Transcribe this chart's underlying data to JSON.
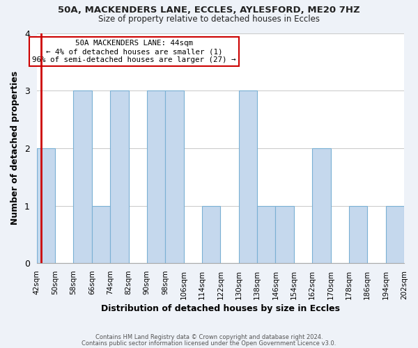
{
  "title": "50A, MACKENDERS LANE, ECCLES, AYLESFORD, ME20 7HZ",
  "subtitle": "Size of property relative to detached houses in Eccles",
  "xlabel": "Distribution of detached houses by size in Eccles",
  "ylabel": "Number of detached properties",
  "bin_labels": [
    "42sqm",
    "50sqm",
    "58sqm",
    "66sqm",
    "74sqm",
    "82sqm",
    "90sqm",
    "98sqm",
    "106sqm",
    "114sqm",
    "122sqm",
    "130sqm",
    "138sqm",
    "146sqm",
    "154sqm",
    "162sqm",
    "170sqm",
    "178sqm",
    "186sqm",
    "194sqm",
    "202sqm"
  ],
  "bar_heights": [
    2,
    0,
    3,
    1,
    3,
    0,
    3,
    3,
    0,
    1,
    0,
    3,
    1,
    1,
    0,
    2,
    0,
    1,
    0,
    1
  ],
  "bar_color": "#c5d8ed",
  "bar_edge_color": "#7ab0d4",
  "highlight_color": "#cc0000",
  "annotation_text": "50A MACKENDERS LANE: 44sqm\n← 4% of detached houses are smaller (1)\n96% of semi-detached houses are larger (27) →",
  "ylim": [
    0,
    4
  ],
  "yticks": [
    0,
    1,
    2,
    3,
    4
  ],
  "footer_line1": "Contains HM Land Registry data © Crown copyright and database right 2024.",
  "footer_line2": "Contains public sector information licensed under the Open Government Licence v3.0.",
  "bg_color": "#eef2f8",
  "plot_bg_color": "#ffffff"
}
